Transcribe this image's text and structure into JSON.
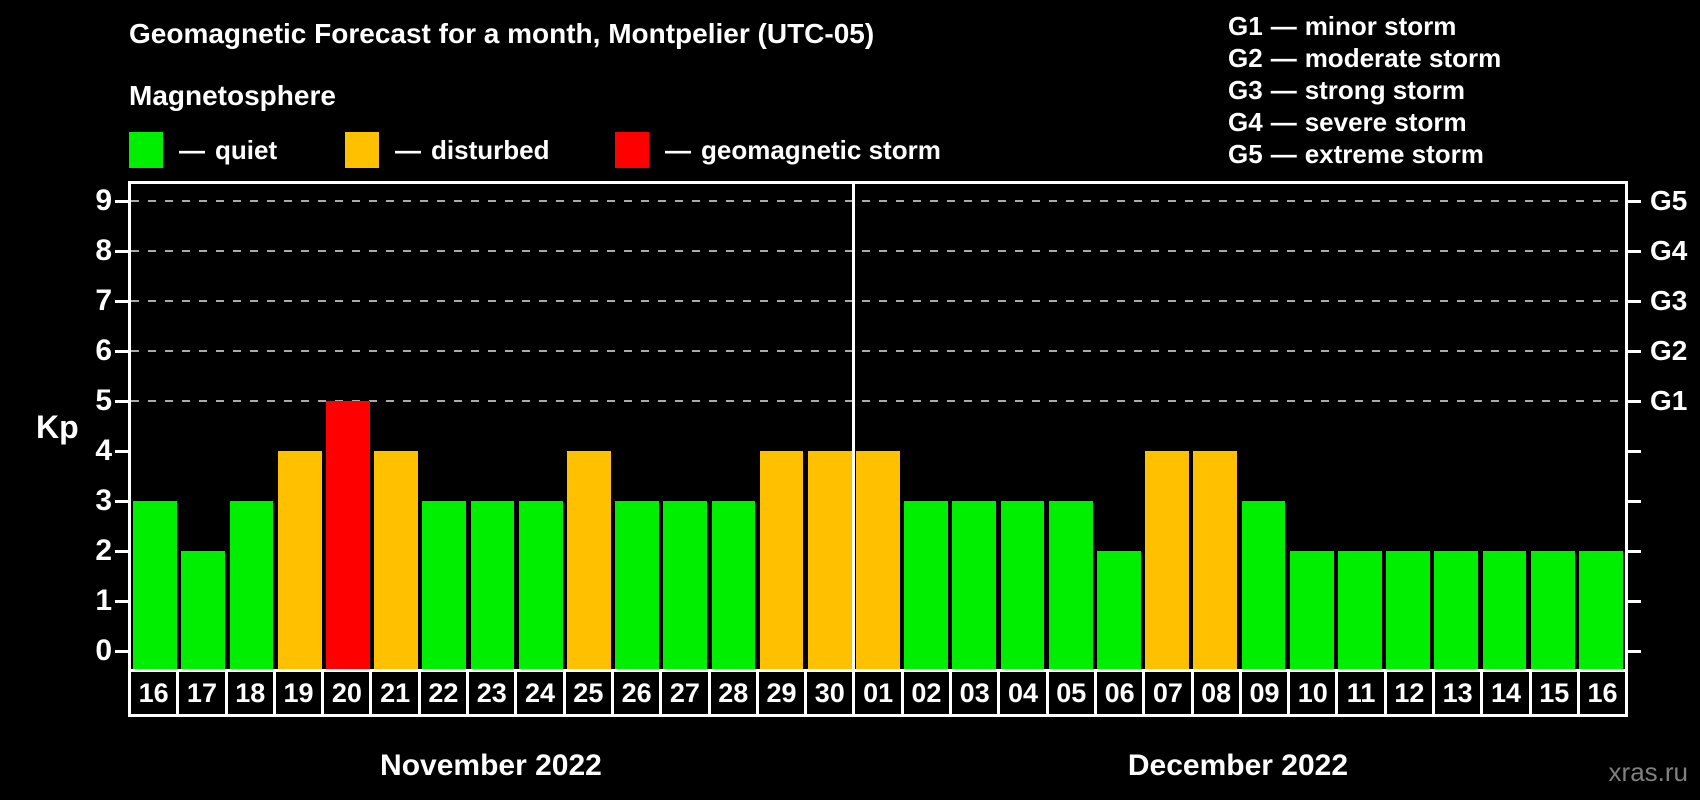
{
  "header": {
    "title": "Geomagnetic Forecast for a month, Montpelier (UTC-05)",
    "subtitle": "Magnetosphere"
  },
  "legend": {
    "dash": "—",
    "items": [
      {
        "key": "quiet",
        "label": "quiet",
        "color": "#00ee00"
      },
      {
        "key": "disturbed",
        "label": "disturbed",
        "color": "#ffc000"
      },
      {
        "key": "storm",
        "label": "geomagnetic storm",
        "color": "#ff0000"
      }
    ]
  },
  "g_legend": {
    "dash": "—",
    "items": [
      {
        "code": "G1",
        "label": "minor storm"
      },
      {
        "code": "G2",
        "label": "moderate storm"
      },
      {
        "code": "G3",
        "label": "strong storm"
      },
      {
        "code": "G4",
        "label": "severe storm"
      },
      {
        "code": "G5",
        "label": "extreme storm"
      }
    ]
  },
  "chart_data": {
    "type": "bar",
    "title": "Geomagnetic Forecast for a month, Montpelier (UTC-05)",
    "ylabel": "Kp",
    "ylim": [
      0,
      9
    ],
    "yticks": [
      0,
      1,
      2,
      3,
      4,
      5,
      6,
      7,
      8,
      9
    ],
    "hgrid_at": [
      5,
      6,
      7,
      8,
      9
    ],
    "grid_style": "dashed horizontal lines at storm levels only",
    "right_axis": [
      {
        "kp": 5,
        "label": "G1"
      },
      {
        "kp": 6,
        "label": "G2"
      },
      {
        "kp": 7,
        "label": "G3"
      },
      {
        "kp": 8,
        "label": "G4"
      },
      {
        "kp": 9,
        "label": "G5"
      }
    ],
    "months": [
      {
        "label": "November 2022",
        "days": 15
      },
      {
        "label": "December 2022",
        "days": 16
      }
    ],
    "categories": [
      "16",
      "17",
      "18",
      "19",
      "20",
      "21",
      "22",
      "23",
      "24",
      "25",
      "26",
      "27",
      "28",
      "29",
      "30",
      "01",
      "02",
      "03",
      "04",
      "05",
      "06",
      "07",
      "08",
      "09",
      "10",
      "11",
      "12",
      "13",
      "14",
      "15",
      "16"
    ],
    "values": [
      3,
      2,
      3,
      4,
      5,
      4,
      3,
      3,
      3,
      4,
      3,
      3,
      3,
      4,
      4,
      4,
      3,
      3,
      3,
      3,
      2,
      4,
      4,
      3,
      2,
      2,
      2,
      2,
      2,
      2,
      2
    ],
    "level_colors": {
      "quiet": "#00ee00",
      "disturbed": "#ffc000",
      "storm": "#ff0000"
    },
    "color_rule": "Kp<=3 quiet, Kp=4 disturbed, Kp>=5 storm"
  },
  "watermark": "xras.ru"
}
